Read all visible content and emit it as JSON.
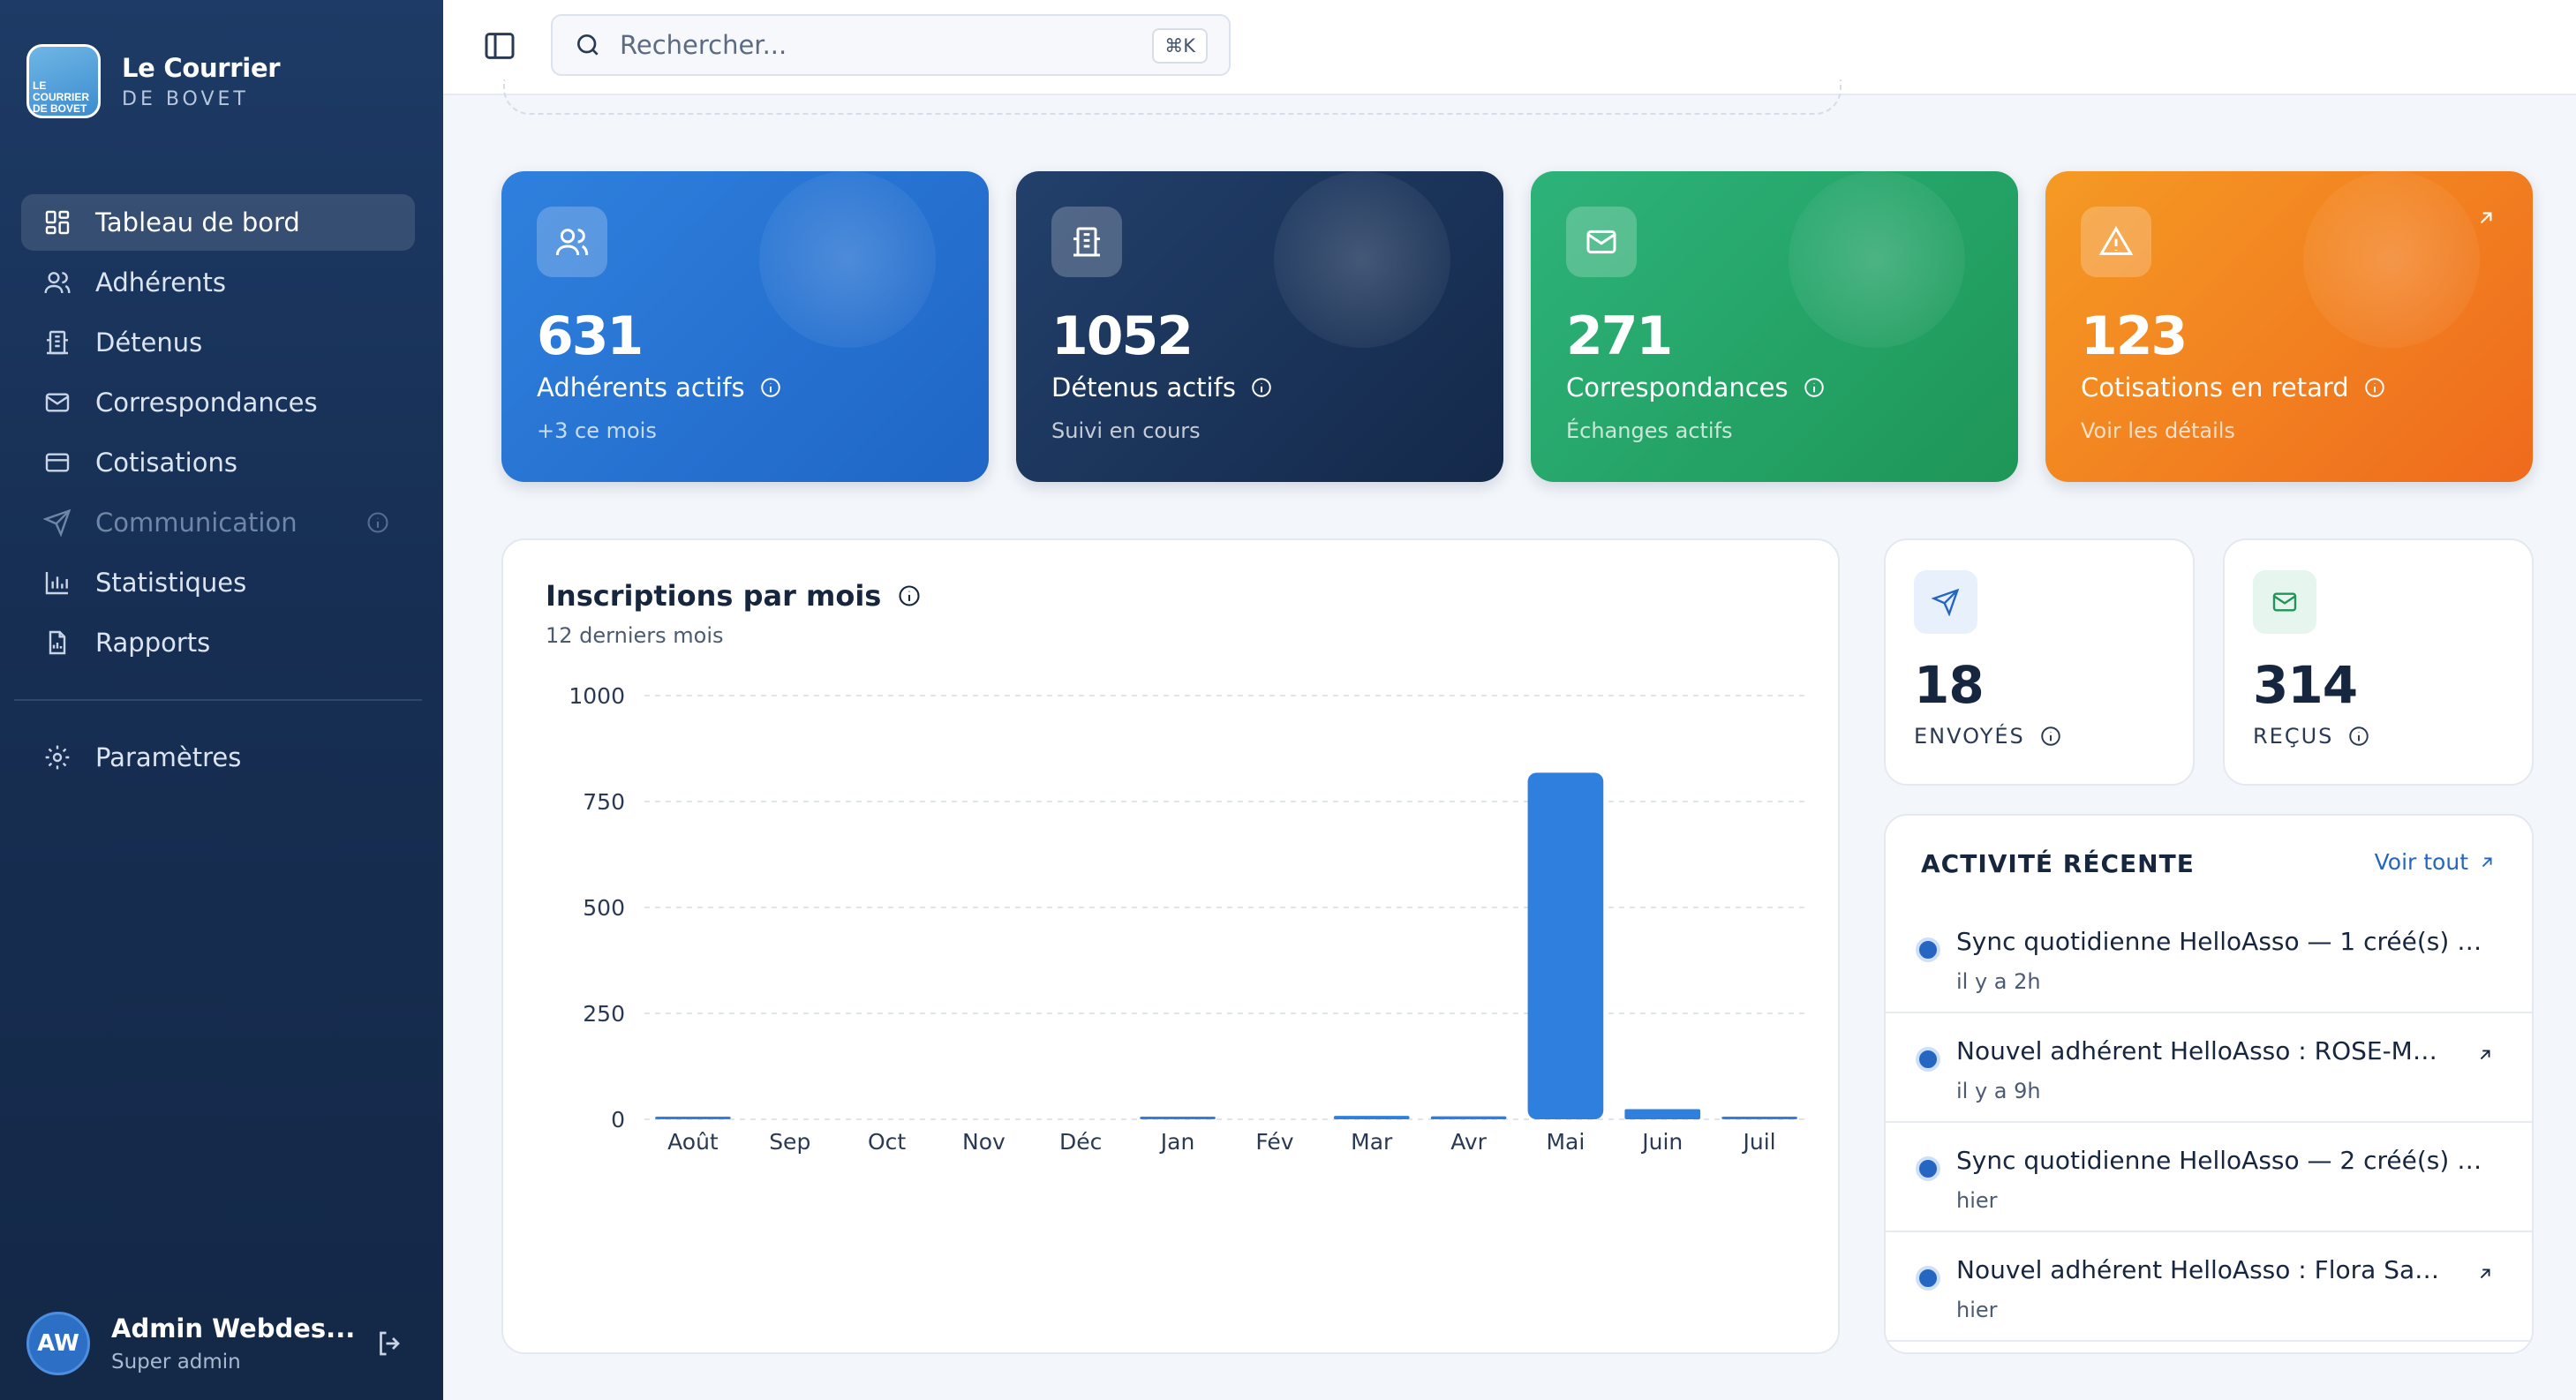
{
  "brand": {
    "title": "Le Courrier",
    "subtitle": "DE BOVET",
    "logo_lines": [
      "LE",
      "COURRIER",
      "DE BOVET"
    ]
  },
  "sidebar": {
    "items": [
      {
        "label": "Tableau de bord",
        "icon": "dashboard-icon",
        "active": true
      },
      {
        "label": "Adhérents",
        "icon": "users-icon"
      },
      {
        "label": "Détenus",
        "icon": "building-icon"
      },
      {
        "label": "Correspondances",
        "icon": "mail-icon"
      },
      {
        "label": "Cotisations",
        "icon": "card-icon"
      },
      {
        "label": "Communication",
        "icon": "send-icon",
        "disabled": true
      },
      {
        "label": "Statistiques",
        "icon": "chart-icon"
      },
      {
        "label": "Rapports",
        "icon": "report-icon"
      }
    ],
    "settings_label": "Paramètres"
  },
  "user": {
    "initials": "AW",
    "name": "Admin Webdes...",
    "role": "Super admin"
  },
  "search": {
    "placeholder": "Rechercher...",
    "shortcut": "⌘K"
  },
  "stats": [
    {
      "value": "631",
      "label": "Adhérents actifs",
      "sub": "+3 ce mois",
      "color": "#2f80de"
    },
    {
      "value": "1052",
      "label": "Détenus actifs",
      "sub": "Suivi en cours",
      "color": "#1c3760"
    },
    {
      "value": "271",
      "label": "Correspondances",
      "sub": "Échanges actifs",
      "color": "#26a56a"
    },
    {
      "value": "123",
      "label": "Cotisations en retard",
      "sub": "Voir les détails",
      "color": "#f2801f"
    }
  ],
  "mini_stats": [
    {
      "value": "18",
      "label": "ENVOYÉS"
    },
    {
      "value": "314",
      "label": "REÇUS"
    }
  ],
  "activity": {
    "title": "ACTIVITÉ RÉCENTE",
    "see_all": "Voir tout",
    "items": [
      {
        "title": "Sync quotidienne HelloAsso — 1 créé(s) — ...",
        "time": "il y a 2h"
      },
      {
        "title": "Nouvel adhérent HelloAsso : ROSE-MA...",
        "time": "il y a 9h"
      },
      {
        "title": "Sync quotidienne HelloAsso — 2 créé(s) — ...",
        "time": "hier"
      },
      {
        "title": "Nouvel adhérent HelloAsso : Flora Sag...",
        "time": "hier"
      }
    ]
  },
  "chart": {
    "title": "Inscriptions par mois",
    "subtitle": "12 derniers mois"
  },
  "chart_data": {
    "type": "bar",
    "title": "Inscriptions par mois",
    "subtitle": "12 derniers mois",
    "categories": [
      "Août",
      "Sep",
      "Oct",
      "Nov",
      "Déc",
      "Jan",
      "Fév",
      "Mar",
      "Avr",
      "Mai",
      "Juin",
      "Juil"
    ],
    "values": [
      4,
      0,
      0,
      0,
      0,
      5,
      0,
      8,
      7,
      818,
      24,
      3
    ],
    "yticks": [
      0,
      250,
      500,
      750,
      1000
    ],
    "ylim": [
      0,
      1000
    ],
    "grid": true,
    "bar_color": "#2f80de"
  }
}
